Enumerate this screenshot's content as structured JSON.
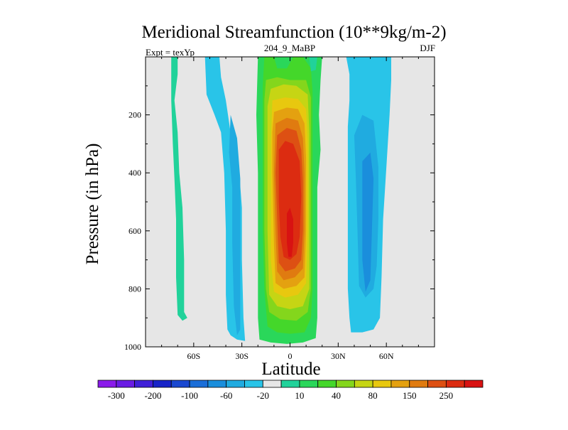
{
  "chart_data": {
    "type": "heatmap",
    "title": "Meridional Streamfunction (10**9kg/m-2)",
    "left_string": "Expt = texYp",
    "center_string": "204_9_MaBP",
    "right_string": "DJF",
    "xlabel": "Latitude",
    "ylabel": "Pressure (in hPa)",
    "xlim": [
      -90,
      90
    ],
    "ylim": [
      1000,
      0
    ],
    "x_ticks": [
      {
        "value": -60,
        "label": "60S"
      },
      {
        "value": -30,
        "label": "30S"
      },
      {
        "value": 0,
        "label": "0"
      },
      {
        "value": 30,
        "label": "30N"
      },
      {
        "value": 60,
        "label": "60N"
      }
    ],
    "y_ticks": [
      {
        "value": 200,
        "label": "200"
      },
      {
        "value": 400,
        "label": "400"
      },
      {
        "value": 600,
        "label": "600"
      },
      {
        "value": 800,
        "label": "800"
      },
      {
        "value": 1000,
        "label": "1000"
      }
    ],
    "missing_color": "#e6e6e6",
    "colorbar": {
      "labels": [
        "-300",
        "-200",
        "-100",
        "-60",
        "-20",
        "10",
        "40",
        "80",
        "150",
        "250"
      ],
      "colors": [
        "#8a1bea",
        "#6a1ce4",
        "#4020d8",
        "#1824c8",
        "#1a48d0",
        "#1b6ed8",
        "#1a8edc",
        "#20abe0",
        "#29c4e8",
        "#e6e6e6",
        "#21d29a",
        "#2ad75a",
        "#44d72a",
        "#84d61c",
        "#c6d514",
        "#e8c80f",
        "#e4a110",
        "#e07b10",
        "#dd5013",
        "#dc2c11",
        "#d81212"
      ]
    },
    "field": {
      "description_levels": "contour fill regions by colour index into colorbar.colors",
      "regions": [
        {
          "color_index": 10,
          "lat": [
            -58,
            -58
          ],
          "p_top": 0,
          "p_bottom": 910,
          "kind": "sh-polar-cell"
        },
        {
          "color_index": 8,
          "lat": [
            -32,
            -32
          ],
          "p_top": 0,
          "p_bottom": 980,
          "kind": "sh-ferrel-cell"
        },
        {
          "color_index": 7,
          "lat": [
            -36,
            -32
          ],
          "p_top": 280,
          "p_bottom": 950,
          "kind": "sh-ferrel-core"
        },
        {
          "color_index": 11,
          "lat": [
            5,
            5
          ],
          "p_top": 0,
          "p_bottom": 990,
          "kind": "hadley-cell"
        },
        {
          "color_index": 19,
          "lat": [
            0,
            0
          ],
          "p_top": 230,
          "p_bottom": 800,
          "kind": "hadley-core"
        },
        {
          "color_index": 8,
          "lat": [
            45,
            45
          ],
          "p_top": 0,
          "p_bottom": 960,
          "kind": "nh-ferrel-cell"
        },
        {
          "color_index": 6,
          "lat": [
            47,
            47
          ],
          "p_top": 250,
          "p_bottom": 830,
          "kind": "nh-ferrel-core"
        }
      ]
    }
  }
}
